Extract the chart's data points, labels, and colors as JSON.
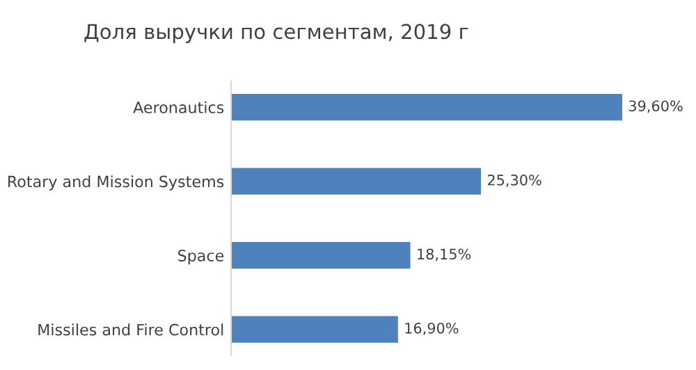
{
  "chart_data": {
    "type": "bar",
    "orientation": "horizontal",
    "title": "Доля выручки по сегментам, 2019 г",
    "categories": [
      "Aeronautics",
      "Rotary and Mission Systems",
      "Space",
      "Missiles and Fire Control"
    ],
    "values": [
      39.6,
      25.3,
      18.15,
      16.9
    ],
    "color": "#4f81bd",
    "value_labels": [
      "39,60%",
      "25,30%",
      "18,15%",
      "16,90%"
    ],
    "grid": false,
    "legend": false,
    "tick_labels": "y"
  }
}
